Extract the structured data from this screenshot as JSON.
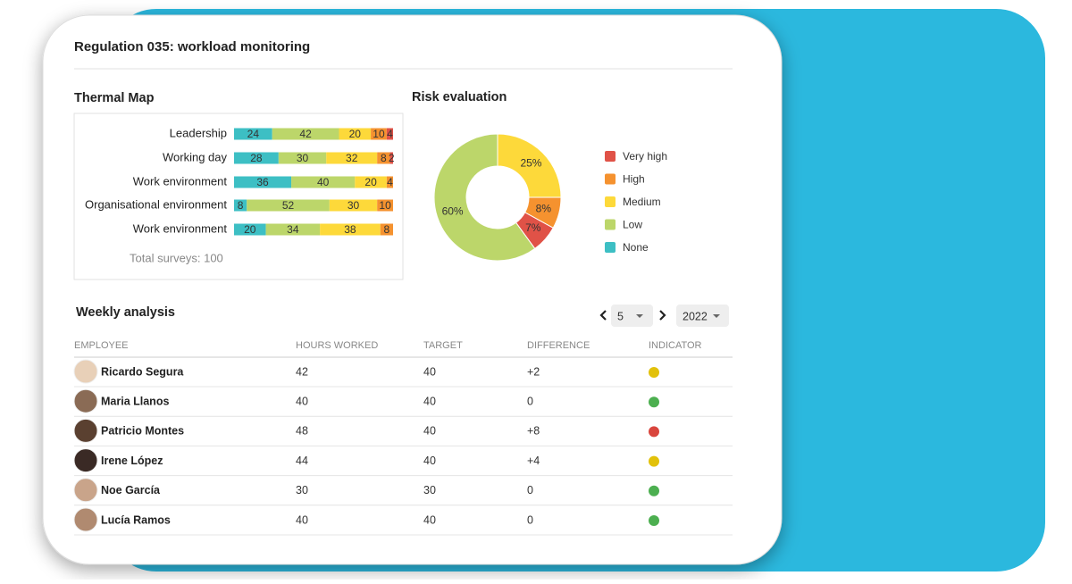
{
  "header": {
    "title": "Regulation 035: workload monitoring"
  },
  "thermal_map": {
    "type": "bar",
    "title": "Thermal Map",
    "categories": [
      "Leadership",
      "Working day",
      "Work environment",
      "Organisational environment",
      "Work environment"
    ],
    "series": [
      {
        "color": "#3dbfc4",
        "values": [
          24,
          28,
          36,
          8,
          20
        ]
      },
      {
        "color": "#bcd66a",
        "values": [
          42,
          30,
          40,
          52,
          34
        ]
      },
      {
        "color": "#fdd93a",
        "values": [
          20,
          32,
          20,
          30,
          38
        ]
      },
      {
        "color": "#f5922f",
        "values": [
          10,
          8,
          4,
          10,
          8
        ]
      },
      {
        "color": "#e05247",
        "values": [
          4,
          2,
          null,
          null,
          null
        ]
      }
    ],
    "footer": "Total surveys: 100"
  },
  "risk_evaluation": {
    "type": "pie",
    "title": "Risk evaluation",
    "categories": [
      "Very high",
      "High",
      "Medium",
      "Low",
      "None"
    ],
    "colors": [
      "#e05247",
      "#f5922f",
      "#fdd93a",
      "#bcd66a",
      "#3dbfc4"
    ],
    "values": [
      7,
      8,
      25,
      60,
      null
    ],
    "value_labels": [
      "7%",
      "8%",
      "25%",
      "60%",
      null
    ]
  },
  "weekly": {
    "title": "Weekly analysis",
    "week": "5",
    "year": "2022",
    "columns": [
      "EMPLOYEE",
      "HOURS WORKED",
      "TARGET",
      "DIFFERENCE",
      "INDICATOR"
    ],
    "rows": [
      {
        "employee": "Ricardo Segura",
        "hours_worked": 42,
        "target": 40,
        "difference": "+2",
        "indicator": "#e2c10a"
      },
      {
        "employee": "Maria Llanos",
        "hours_worked": 40,
        "target": 40,
        "difference": "0",
        "indicator": "#4caf50"
      },
      {
        "employee": "Patricio Montes",
        "hours_worked": 48,
        "target": 40,
        "difference": "+8",
        "indicator": "#d9453d"
      },
      {
        "employee": "Irene López",
        "hours_worked": 44,
        "target": 40,
        "difference": "+4",
        "indicator": "#e2c10a"
      },
      {
        "employee": "Noe García",
        "hours_worked": 30,
        "target": 30,
        "difference": "0",
        "indicator": "#4caf50"
      },
      {
        "employee": "Lucía Ramos",
        "hours_worked": 40,
        "target": 40,
        "difference": "0",
        "indicator": "#4caf50"
      }
    ]
  }
}
